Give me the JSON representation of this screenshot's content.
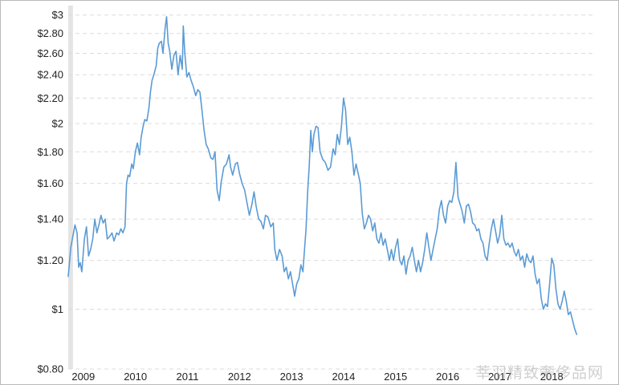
{
  "chart_data": {
    "type": "line",
    "title": "",
    "xlabel": "",
    "ylabel": "",
    "y_scale": "log",
    "ylim": [
      0.8,
      3.07
    ],
    "xlim": [
      2008.91,
      2019.03
    ],
    "grid": true,
    "legend": "none",
    "line_color": "#5b9bd5",
    "shade_color": "#e4e4e4",
    "shade_range": [
      2008.91,
      2009.0
    ],
    "y_ticks": [
      {
        "value": 3,
        "label": "$3"
      },
      {
        "value": 2.8,
        "label": "$2.80"
      },
      {
        "value": 2.6,
        "label": "$2.60"
      },
      {
        "value": 2.4,
        "label": "$2.40"
      },
      {
        "value": 2.2,
        "label": "$2.20"
      },
      {
        "value": 2.0,
        "label": "$2"
      },
      {
        "value": 1.8,
        "label": "$1.80"
      },
      {
        "value": 1.6,
        "label": "$1.60"
      },
      {
        "value": 1.4,
        "label": "$1.40"
      },
      {
        "value": 1.2,
        "label": "$1.20"
      },
      {
        "value": 1.0,
        "label": "$1"
      },
      {
        "value": 0.8,
        "label": "$0.80"
      }
    ],
    "x_ticks": [
      {
        "value": 2009,
        "label": "2009"
      },
      {
        "value": 2010,
        "label": "2010"
      },
      {
        "value": 2011,
        "label": "2011"
      },
      {
        "value": 2012,
        "label": "2012"
      },
      {
        "value": 2013,
        "label": "2013"
      },
      {
        "value": 2014,
        "label": "2014"
      },
      {
        "value": 2015,
        "label": "2015"
      },
      {
        "value": 2016,
        "label": "2016"
      },
      {
        "value": 2017,
        "label": "2017"
      },
      {
        "value": 2018,
        "label": "2018"
      }
    ],
    "series": [
      {
        "points": [
          [
            2008.91,
            1.13
          ],
          [
            2008.96,
            1.26
          ],
          [
            2009.04,
            1.37
          ],
          [
            2009.08,
            1.33
          ],
          [
            2009.11,
            1.17
          ],
          [
            2009.14,
            1.19
          ],
          [
            2009.17,
            1.15
          ],
          [
            2009.22,
            1.3
          ],
          [
            2009.26,
            1.36
          ],
          [
            2009.3,
            1.22
          ],
          [
            2009.34,
            1.25
          ],
          [
            2009.38,
            1.3
          ],
          [
            2009.42,
            1.4
          ],
          [
            2009.46,
            1.33
          ],
          [
            2009.5,
            1.37
          ],
          [
            2009.54,
            1.42
          ],
          [
            2009.58,
            1.38
          ],
          [
            2009.62,
            1.4
          ],
          [
            2009.66,
            1.3
          ],
          [
            2009.7,
            1.31
          ],
          [
            2009.75,
            1.33
          ],
          [
            2009.79,
            1.29
          ],
          [
            2009.84,
            1.33
          ],
          [
            2009.88,
            1.32
          ],
          [
            2009.92,
            1.35
          ],
          [
            2009.96,
            1.33
          ],
          [
            2010.0,
            1.36
          ],
          [
            2010.03,
            1.6
          ],
          [
            2010.06,
            1.65
          ],
          [
            2010.09,
            1.64
          ],
          [
            2010.13,
            1.72
          ],
          [
            2010.16,
            1.69
          ],
          [
            2010.2,
            1.8
          ],
          [
            2010.24,
            1.86
          ],
          [
            2010.28,
            1.78
          ],
          [
            2010.31,
            1.9
          ],
          [
            2010.35,
            1.98
          ],
          [
            2010.38,
            2.03
          ],
          [
            2010.42,
            2.02
          ],
          [
            2010.46,
            2.12
          ],
          [
            2010.49,
            2.25
          ],
          [
            2010.52,
            2.35
          ],
          [
            2010.56,
            2.41
          ],
          [
            2010.6,
            2.48
          ],
          [
            2010.63,
            2.65
          ],
          [
            2010.66,
            2.7
          ],
          [
            2010.7,
            2.72
          ],
          [
            2010.73,
            2.6
          ],
          [
            2010.77,
            2.85
          ],
          [
            2010.8,
            2.98
          ],
          [
            2010.83,
            2.7
          ],
          [
            2010.86,
            2.62
          ],
          [
            2010.9,
            2.45
          ],
          [
            2010.94,
            2.58
          ],
          [
            2010.98,
            2.62
          ],
          [
            2011.02,
            2.4
          ],
          [
            2011.06,
            2.58
          ],
          [
            2011.1,
            2.45
          ],
          [
            2011.12,
            2.88
          ],
          [
            2011.15,
            2.6
          ],
          [
            2011.19,
            2.38
          ],
          [
            2011.23,
            2.42
          ],
          [
            2011.27,
            2.35
          ],
          [
            2011.31,
            2.3
          ],
          [
            2011.36,
            2.22
          ],
          [
            2011.4,
            2.27
          ],
          [
            2011.44,
            2.25
          ],
          [
            2011.48,
            2.1
          ],
          [
            2011.52,
            1.95
          ],
          [
            2011.56,
            1.85
          ],
          [
            2011.6,
            1.82
          ],
          [
            2011.65,
            1.76
          ],
          [
            2011.69,
            1.75
          ],
          [
            2011.73,
            1.8
          ],
          [
            2011.77,
            1.56
          ],
          [
            2011.81,
            1.5
          ],
          [
            2011.85,
            1.61
          ],
          [
            2011.9,
            1.7
          ],
          [
            2011.95,
            1.72
          ],
          [
            2012.0,
            1.78
          ],
          [
            2012.03,
            1.7
          ],
          [
            2012.07,
            1.65
          ],
          [
            2012.12,
            1.72
          ],
          [
            2012.16,
            1.73
          ],
          [
            2012.2,
            1.66
          ],
          [
            2012.25,
            1.6
          ],
          [
            2012.3,
            1.56
          ],
          [
            2012.35,
            1.48
          ],
          [
            2012.39,
            1.42
          ],
          [
            2012.44,
            1.48
          ],
          [
            2012.48,
            1.55
          ],
          [
            2012.52,
            1.47
          ],
          [
            2012.57,
            1.4
          ],
          [
            2012.61,
            1.39
          ],
          [
            2012.66,
            1.35
          ],
          [
            2012.7,
            1.42
          ],
          [
            2012.75,
            1.41
          ],
          [
            2012.8,
            1.36
          ],
          [
            2012.85,
            1.38
          ],
          [
            2012.88,
            1.25
          ],
          [
            2012.92,
            1.2
          ],
          [
            2012.97,
            1.25
          ],
          [
            2013.02,
            1.22
          ],
          [
            2013.06,
            1.15
          ],
          [
            2013.1,
            1.17
          ],
          [
            2013.14,
            1.12
          ],
          [
            2013.18,
            1.15
          ],
          [
            2013.22,
            1.1
          ],
          [
            2013.26,
            1.05
          ],
          [
            2013.3,
            1.1
          ],
          [
            2013.34,
            1.12
          ],
          [
            2013.38,
            1.18
          ],
          [
            2013.42,
            1.15
          ],
          [
            2013.45,
            1.25
          ],
          [
            2013.48,
            1.35
          ],
          [
            2013.51,
            1.55
          ],
          [
            2013.54,
            1.7
          ],
          [
            2013.57,
            1.95
          ],
          [
            2013.6,
            1.8
          ],
          [
            2013.63,
            1.92
          ],
          [
            2013.67,
            1.98
          ],
          [
            2013.71,
            1.97
          ],
          [
            2013.75,
            1.8
          ],
          [
            2013.8,
            1.75
          ],
          [
            2013.85,
            1.73
          ],
          [
            2013.9,
            1.68
          ],
          [
            2013.95,
            1.7
          ],
          [
            2014.0,
            1.82
          ],
          [
            2014.04,
            1.78
          ],
          [
            2014.08,
            1.92
          ],
          [
            2014.12,
            1.85
          ],
          [
            2014.16,
            1.98
          ],
          [
            2014.2,
            2.2
          ],
          [
            2014.24,
            2.1
          ],
          [
            2014.28,
            1.85
          ],
          [
            2014.32,
            1.9
          ],
          [
            2014.36,
            1.8
          ],
          [
            2014.4,
            1.65
          ],
          [
            2014.44,
            1.72
          ],
          [
            2014.48,
            1.66
          ],
          [
            2014.52,
            1.6
          ],
          [
            2014.56,
            1.43
          ],
          [
            2014.6,
            1.35
          ],
          [
            2014.64,
            1.38
          ],
          [
            2014.68,
            1.42
          ],
          [
            2014.72,
            1.4
          ],
          [
            2014.76,
            1.34
          ],
          [
            2014.8,
            1.38
          ],
          [
            2014.84,
            1.3
          ],
          [
            2014.88,
            1.28
          ],
          [
            2014.92,
            1.33
          ],
          [
            2014.96,
            1.27
          ],
          [
            2015.0,
            1.3
          ],
          [
            2015.04,
            1.25
          ],
          [
            2015.08,
            1.2
          ],
          [
            2015.12,
            1.25
          ],
          [
            2015.16,
            1.2
          ],
          [
            2015.2,
            1.26
          ],
          [
            2015.24,
            1.3
          ],
          [
            2015.28,
            1.2
          ],
          [
            2015.32,
            1.18
          ],
          [
            2015.36,
            1.22
          ],
          [
            2015.4,
            1.14
          ],
          [
            2015.44,
            1.2
          ],
          [
            2015.48,
            1.22
          ],
          [
            2015.52,
            1.26
          ],
          [
            2015.56,
            1.2
          ],
          [
            2015.6,
            1.15
          ],
          [
            2015.64,
            1.2
          ],
          [
            2015.68,
            1.15
          ],
          [
            2015.72,
            1.19
          ],
          [
            2015.76,
            1.25
          ],
          [
            2015.8,
            1.33
          ],
          [
            2015.84,
            1.26
          ],
          [
            2015.88,
            1.2
          ],
          [
            2015.92,
            1.25
          ],
          [
            2015.96,
            1.3
          ],
          [
            2016.0,
            1.35
          ],
          [
            2016.04,
            1.45
          ],
          [
            2016.08,
            1.5
          ],
          [
            2016.12,
            1.42
          ],
          [
            2016.16,
            1.38
          ],
          [
            2016.2,
            1.47
          ],
          [
            2016.24,
            1.5
          ],
          [
            2016.28,
            1.49
          ],
          [
            2016.32,
            1.55
          ],
          [
            2016.36,
            1.73
          ],
          [
            2016.4,
            1.52
          ],
          [
            2016.44,
            1.48
          ],
          [
            2016.48,
            1.44
          ],
          [
            2016.52,
            1.38
          ],
          [
            2016.56,
            1.47
          ],
          [
            2016.6,
            1.48
          ],
          [
            2016.64,
            1.44
          ],
          [
            2016.68,
            1.38
          ],
          [
            2016.72,
            1.37
          ],
          [
            2016.76,
            1.34
          ],
          [
            2016.8,
            1.35
          ],
          [
            2016.84,
            1.3
          ],
          [
            2016.88,
            1.28
          ],
          [
            2016.92,
            1.22
          ],
          [
            2016.96,
            1.2
          ],
          [
            2017.0,
            1.28
          ],
          [
            2017.04,
            1.35
          ],
          [
            2017.08,
            1.4
          ],
          [
            2017.12,
            1.34
          ],
          [
            2017.16,
            1.28
          ],
          [
            2017.2,
            1.32
          ],
          [
            2017.24,
            1.42
          ],
          [
            2017.28,
            1.3
          ],
          [
            2017.32,
            1.27
          ],
          [
            2017.36,
            1.28
          ],
          [
            2017.4,
            1.26
          ],
          [
            2017.44,
            1.28
          ],
          [
            2017.48,
            1.24
          ],
          [
            2017.52,
            1.22
          ],
          [
            2017.56,
            1.25
          ],
          [
            2017.6,
            1.2
          ],
          [
            2017.64,
            1.22
          ],
          [
            2017.68,
            1.17
          ],
          [
            2017.72,
            1.23
          ],
          [
            2017.76,
            1.2
          ],
          [
            2017.8,
            1.19
          ],
          [
            2017.84,
            1.22
          ],
          [
            2017.88,
            1.14
          ],
          [
            2017.92,
            1.1
          ],
          [
            2017.96,
            1.12
          ],
          [
            2018.0,
            1.04
          ],
          [
            2018.04,
            1.0
          ],
          [
            2018.08,
            1.02
          ],
          [
            2018.12,
            1.01
          ],
          [
            2018.16,
            1.1
          ],
          [
            2018.2,
            1.21
          ],
          [
            2018.24,
            1.18
          ],
          [
            2018.28,
            1.08
          ],
          [
            2018.32,
            1.02
          ],
          [
            2018.36,
            1.0
          ],
          [
            2018.4,
            1.03
          ],
          [
            2018.44,
            1.07
          ],
          [
            2018.48,
            1.03
          ],
          [
            2018.52,
            0.98
          ],
          [
            2018.56,
            0.99
          ],
          [
            2018.6,
            0.96
          ],
          [
            2018.64,
            0.93
          ],
          [
            2018.68,
            0.91
          ]
        ]
      }
    ]
  },
  "watermark": "莘羽精致奢侈品网"
}
